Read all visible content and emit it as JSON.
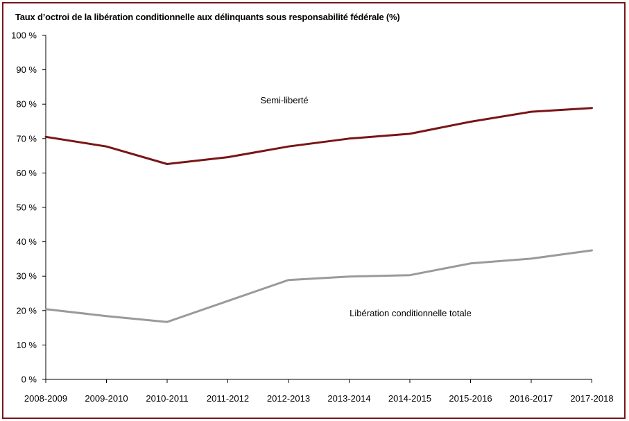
{
  "chart_data": {
    "type": "line",
    "title": "Taux d’octroi de la libération conditionnelle aux délinquants sous responsabilité fédérale (%)",
    "categories": [
      "2008-2009",
      "2009-2010",
      "2010-2011",
      "2011-2012",
      "2012-2013",
      "2013-2014",
      "2014-2015",
      "2015-2016",
      "2016-2017",
      "2017-2018"
    ],
    "y_ticks": [
      "0 %",
      "10 %",
      "20 %",
      "30 %",
      "40 %",
      "50 %",
      "60 %",
      "70 %",
      "80 %",
      "90 %",
      "100 %"
    ],
    "ylim": [
      0,
      100
    ],
    "grid": false,
    "legend": "none",
    "series": [
      {
        "name": "Semi-liberté",
        "color": "#7a1416",
        "values": [
          70.5,
          67.7,
          62.6,
          64.6,
          67.7,
          70.0,
          71.4,
          74.9,
          77.8,
          78.9
        ]
      },
      {
        "name": "Libération conditionnelle totale",
        "color": "#9a9a9a",
        "values": [
          20.4,
          18.4,
          16.7,
          22.8,
          28.9,
          29.9,
          30.3,
          33.7,
          35.1,
          37.5
        ]
      }
    ]
  }
}
